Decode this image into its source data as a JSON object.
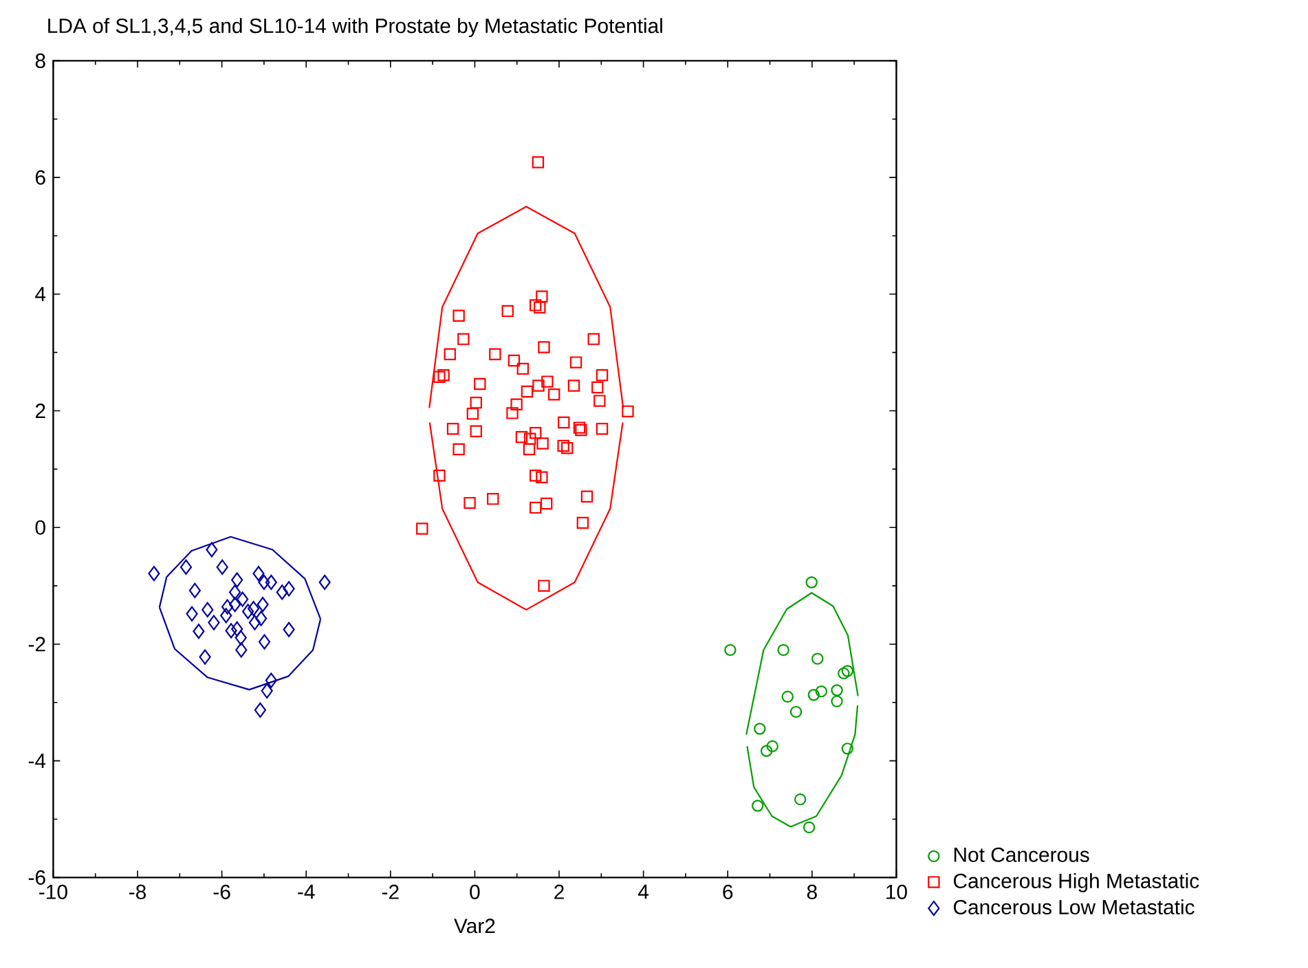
{
  "chart_data": {
    "type": "scatter",
    "title": "LDA of SL1,3,4,5 and SL10-14 with Prostate by Metastatic Potential",
    "xlabel": "Var2",
    "xlim": [
      -10,
      10
    ],
    "ylim": [
      -6,
      8
    ],
    "xticks": [
      -10,
      -8,
      -6,
      -4,
      -2,
      0,
      2,
      4,
      6,
      8,
      10
    ],
    "yticks": [
      -6,
      -4,
      -2,
      0,
      2,
      4,
      6,
      8
    ],
    "legend": "bottom right",
    "series": [
      {
        "name": "Not Cancerous",
        "color": "#00a000",
        "marker": "circle",
        "x": [
          7.99,
          6.06,
          7.32,
          8.13,
          8.84,
          8.75,
          7.42,
          8.04,
          8.22,
          8.59,
          8.59,
          7.62,
          6.76,
          7.06,
          6.92,
          8.84,
          6.71,
          7.72,
          7.93
        ],
        "values": [
          -0.94,
          -2.1,
          -2.1,
          -2.25,
          -2.46,
          -2.5,
          -2.9,
          -2.87,
          -2.81,
          -2.79,
          -2.98,
          -3.16,
          -3.45,
          -3.75,
          -3.83,
          -3.79,
          -4.77,
          -4.66,
          -5.14
        ]
      },
      {
        "name": "Cancerous High Metastatic",
        "color": "#ff0000",
        "marker": "square",
        "x": [
          1.5,
          1.59,
          1.44,
          1.54,
          -0.38,
          0.78,
          -0.27,
          2.82,
          1.64,
          -0.59,
          0.48,
          0.93,
          1.14,
          2.4,
          -0.84,
          -0.74,
          3.02,
          0.12,
          1.51,
          1.72,
          1.88,
          2.35,
          2.91,
          1.24,
          2.96,
          0.03,
          0.99,
          -0.05,
          0.89,
          3.63,
          2.11,
          2.48,
          2.52,
          3.02,
          -0.52,
          0.03,
          1.11,
          1.44,
          1.31,
          1.61,
          1.29,
          -0.38,
          2.1,
          2.19,
          -0.84,
          1.44,
          1.59,
          -0.12,
          0.43,
          2.66,
          1.44,
          1.7,
          2.56,
          -1.25,
          1.64
        ],
        "values": [
          6.26,
          3.96,
          3.81,
          3.77,
          3.63,
          3.71,
          3.23,
          3.23,
          3.09,
          2.97,
          2.97,
          2.86,
          2.72,
          2.83,
          2.58,
          2.61,
          2.61,
          2.46,
          2.43,
          2.5,
          2.28,
          2.43,
          2.4,
          2.33,
          2.17,
          2.14,
          2.11,
          1.95,
          1.96,
          1.99,
          1.8,
          1.71,
          1.67,
          1.69,
          1.69,
          1.65,
          1.55,
          1.62,
          1.52,
          1.44,
          1.34,
          1.34,
          1.4,
          1.36,
          0.89,
          0.89,
          0.86,
          0.42,
          0.49,
          0.53,
          0.34,
          0.41,
          0.08,
          -0.02,
          -1.0
        ]
      },
      {
        "name": "Cancerous Low Metastatic",
        "color": "#0000a0",
        "marker": "diamond",
        "x": [
          -7.61,
          -6.85,
          -6.24,
          -5.99,
          -6.64,
          -5.64,
          -5.69,
          -5.13,
          -5.0,
          -4.83,
          -4.57,
          -4.41,
          -3.56,
          -6.71,
          -6.34,
          -6.19,
          -6.55,
          -5.87,
          -5.9,
          -5.69,
          -5.51,
          -5.38,
          -5.25,
          -5.03,
          -5.07,
          -5.22,
          -5.78,
          -5.64,
          -4.41,
          -5.55,
          -6.4,
          -4.99,
          -5.54,
          -4.83,
          -4.93,
          -5.09
        ],
        "values": [
          -0.79,
          -0.68,
          -0.38,
          -0.68,
          -1.08,
          -0.9,
          -1.11,
          -0.79,
          -0.94,
          -0.94,
          -1.11,
          -1.05,
          -0.94,
          -1.48,
          -1.41,
          -1.63,
          -1.78,
          -1.36,
          -1.51,
          -1.32,
          -1.23,
          -1.44,
          -1.39,
          -1.32,
          -1.56,
          -1.63,
          -1.77,
          -1.74,
          -1.75,
          -1.89,
          -2.22,
          -1.96,
          -2.1,
          -2.62,
          -2.8,
          -3.13
        ]
      },
      {
        "type": "line",
        "color": "#00a000",
        "x": [
          6.44,
          6.85,
          7.4,
          7.99,
          8.5,
          8.85,
          9.09
        ],
        "values": [
          -3.55,
          -2.1,
          -1.4,
          -1.12,
          -1.35,
          -1.85,
          -2.89
        ]
      },
      {
        "type": "line",
        "color": "#00a000",
        "x": [
          6.46,
          6.62,
          7.05,
          7.49,
          8.1,
          8.7,
          9.02,
          9.08
        ],
        "values": [
          -3.75,
          -4.45,
          -4.95,
          -5.13,
          -4.95,
          -4.25,
          -3.55,
          -3.05
        ]
      },
      {
        "type": "line",
        "color": "#ff0000",
        "x": [
          -1.08,
          -0.77,
          0.07,
          1.22,
          2.37,
          3.21,
          3.52
        ],
        "values": [
          2.05,
          3.78,
          5.04,
          5.5,
          5.04,
          3.78,
          2.05
        ]
      },
      {
        "type": "line",
        "color": "#ff0000",
        "x": [
          -1.07,
          -0.77,
          0.07,
          1.22,
          2.37,
          3.21,
          3.51
        ],
        "values": [
          1.8,
          0.32,
          -0.94,
          -1.41,
          -0.94,
          0.32,
          1.8
        ]
      },
      {
        "type": "line",
        "color": "#0000a0",
        "x": [
          -7.48,
          -7.31,
          -6.72,
          -5.79,
          -4.8,
          -4.03,
          -3.66
        ],
        "values": [
          -1.37,
          -0.85,
          -0.4,
          -0.16,
          -0.38,
          -0.88,
          -1.57
        ]
      },
      {
        "type": "line",
        "color": "#0000a0",
        "x": [
          -7.48,
          -7.12,
          -6.34,
          -5.35,
          -4.42,
          -3.84,
          -3.66
        ],
        "values": [
          -1.37,
          -2.08,
          -2.57,
          -2.78,
          -2.55,
          -2.1,
          -1.57
        ]
      }
    ]
  }
}
